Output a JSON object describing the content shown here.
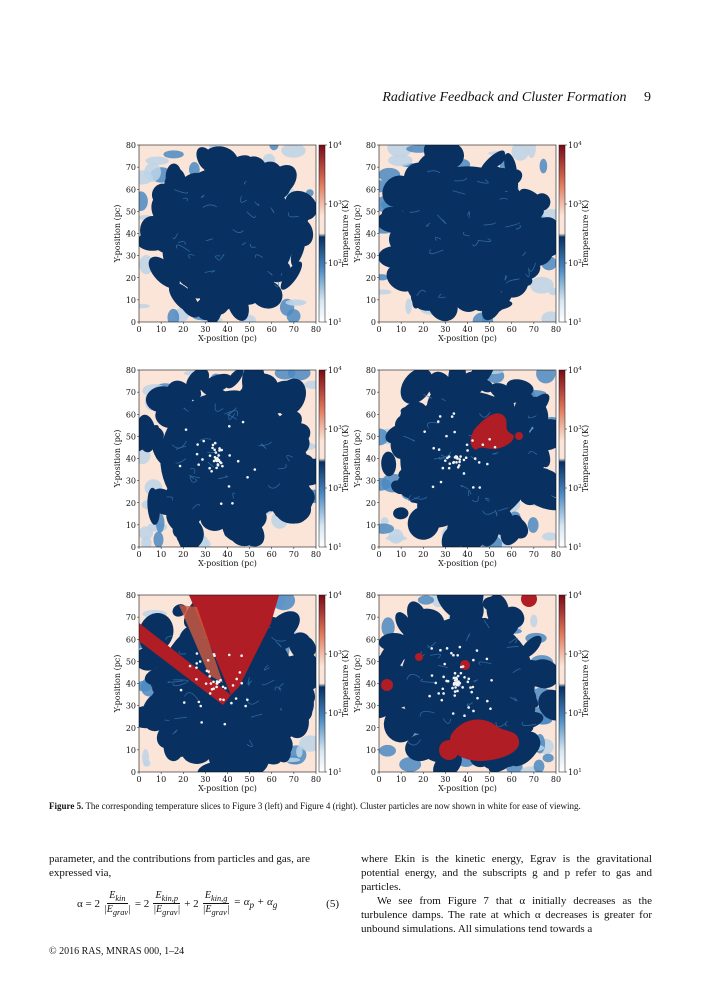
{
  "header": {
    "title": "Radiative Feedback and Cluster Formation",
    "page_number": "9"
  },
  "figure": {
    "panels": [
      {
        "id": "p1",
        "stars": false,
        "hot": "none"
      },
      {
        "id": "p2",
        "stars": false,
        "hot": "none"
      },
      {
        "id": "p3",
        "stars": true,
        "hot": "none"
      },
      {
        "id": "p4",
        "stars": true,
        "hot": "blob"
      },
      {
        "id": "p5",
        "stars": true,
        "hot": "wedge"
      },
      {
        "id": "p6",
        "stars": true,
        "hot": "spots"
      }
    ],
    "axes": {
      "xlabel": "X-position (pc)",
      "ylabel": "Y-position (pc)",
      "xticks": [
        "0",
        "10",
        "20",
        "30",
        "40",
        "50",
        "60",
        "70",
        "80"
      ],
      "yticks": [
        "0",
        "10",
        "20",
        "30",
        "40",
        "50",
        "60",
        "70",
        "80"
      ],
      "colorbar_label": "Temperature (K)",
      "colorbar_ticks": [
        "10",
        "10",
        "10",
        "10"
      ],
      "colorbar_exponents": [
        "1",
        "2",
        "3",
        "4"
      ]
    },
    "colors": {
      "cold": "#083162",
      "mid_blue": "#4b8ac2",
      "pale": "#fae5d8",
      "hot": "#b01d24",
      "hot_light": "#d35a40"
    },
    "caption_label": "Figure 5.",
    "caption_text": "The corresponding temperature slices to Figure 3 (left) and Figure 4 (right). Cluster particles are now shown in white for ease of viewing."
  },
  "text": {
    "left_para": "parameter, and the contributions from particles and gas, are expressed via,",
    "eq": {
      "alpha_eq": "α = 2",
      "ekin": "E",
      "ekin_sub": "kin",
      "egrav": "|E",
      "egrav_sub": "grav",
      "egrav_close": "|",
      "eq_plus": "+ 2",
      "eq_eq": "= 2",
      "ekinp_sub": "kin,p",
      "eking_sub": "kin,g",
      "result": "= α",
      "res_p": "p",
      "res_plus": " + α",
      "res_g": "g",
      "number": "(5)"
    },
    "right_para1": "where Ekin is the kinetic energy, Egrav is the gravitational potential energy, and the subscripts g and p refer to gas and particles.",
    "right_para2": "We see from Figure 7 that α initially decreases as the turbulence damps. The rate at which α decreases is greater for unbound simulations. All simulations tend towards a"
  },
  "footer": {
    "text": "© 2016 RAS, MNRAS 000, 1–24"
  }
}
